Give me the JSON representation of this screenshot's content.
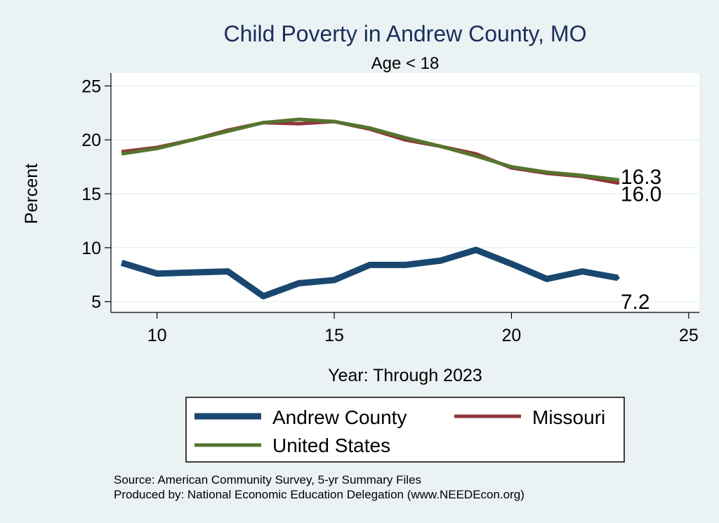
{
  "chart_data": {
    "type": "line",
    "title": "Child Poverty in Andrew County, MO",
    "subtitle": "Age < 18",
    "xlabel": "Year: Through 2023",
    "ylabel": "Percent",
    "xlim": [
      8.7,
      25.3
    ],
    "ylim": [
      4,
      26.2
    ],
    "xticks": [
      10,
      15,
      20,
      25
    ],
    "yticks": [
      5,
      10,
      15,
      20,
      25
    ],
    "grid": true,
    "legend_position": "bottom",
    "x": [
      9,
      10,
      11,
      12,
      13,
      14,
      15,
      16,
      17,
      18,
      19,
      20,
      21,
      22,
      23
    ],
    "series": [
      {
        "name": "Andrew County",
        "color": "#1a476f",
        "values": [
          8.6,
          7.6,
          7.7,
          7.8,
          5.5,
          6.7,
          7.0,
          8.4,
          8.4,
          8.8,
          9.8,
          8.5,
          7.1,
          7.8,
          7.2
        ],
        "end_label": "7.2"
      },
      {
        "name": "Missouri",
        "color": "#90353b",
        "values": [
          18.9,
          19.3,
          20.0,
          20.9,
          21.6,
          21.5,
          21.7,
          21.0,
          20.0,
          19.4,
          18.7,
          17.4,
          16.9,
          16.6,
          16.0
        ],
        "end_label": "16.0"
      },
      {
        "name": "United States",
        "color": "#55752f",
        "values": [
          18.7,
          19.2,
          20.0,
          20.8,
          21.6,
          21.9,
          21.7,
          21.1,
          20.2,
          19.4,
          18.5,
          17.5,
          17.0,
          16.7,
          16.3
        ],
        "end_label": "16.3"
      }
    ]
  },
  "source_line_1": "Source: American Community Survey, 5-yr Summary Files",
  "source_line_2": "Produced by: National Economic Education Delegation (www.NEEDEcon.org)"
}
